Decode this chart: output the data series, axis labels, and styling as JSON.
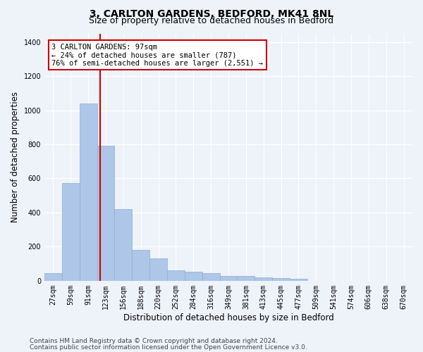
{
  "title_line1": "3, CARLTON GARDENS, BEDFORD, MK41 8NL",
  "title_line2": "Size of property relative to detached houses in Bedford",
  "xlabel": "Distribution of detached houses by size in Bedford",
  "ylabel": "Number of detached properties",
  "bin_labels": [
    "27sqm",
    "59sqm",
    "91sqm",
    "123sqm",
    "156sqm",
    "188sqm",
    "220sqm",
    "252sqm",
    "284sqm",
    "316sqm",
    "349sqm",
    "381sqm",
    "413sqm",
    "445sqm",
    "477sqm",
    "509sqm",
    "541sqm",
    "574sqm",
    "606sqm",
    "638sqm",
    "670sqm"
  ],
  "bar_values": [
    45,
    575,
    1040,
    790,
    420,
    180,
    130,
    60,
    55,
    45,
    30,
    30,
    20,
    15,
    12,
    0,
    0,
    0,
    0,
    0,
    0
  ],
  "bar_color": "#aec6e8",
  "bar_edgecolor": "#8ab0d0",
  "bar_linewidth": 0.5,
  "vline_x": 2.67,
  "vline_color": "#cc0000",
  "annotation_text": "3 CARLTON GARDENS: 97sqm\n← 24% of detached houses are smaller (787)\n76% of semi-detached houses are larger (2,551) →",
  "annotation_box_facecolor": "#ffffff",
  "annotation_box_edgecolor": "#cc0000",
  "ylim": [
    0,
    1450
  ],
  "yticks": [
    0,
    200,
    400,
    600,
    800,
    1000,
    1200,
    1400
  ],
  "background_color": "#eef2f9",
  "grid_color": "#ffffff",
  "footer_line1": "Contains HM Land Registry data © Crown copyright and database right 2024.",
  "footer_line2": "Contains public sector information licensed under the Open Government Licence v3.0.",
  "title_fontsize": 10,
  "subtitle_fontsize": 9,
  "axis_label_fontsize": 8.5,
  "tick_fontsize": 7,
  "annotation_fontsize": 7.5,
  "footer_fontsize": 6.5
}
